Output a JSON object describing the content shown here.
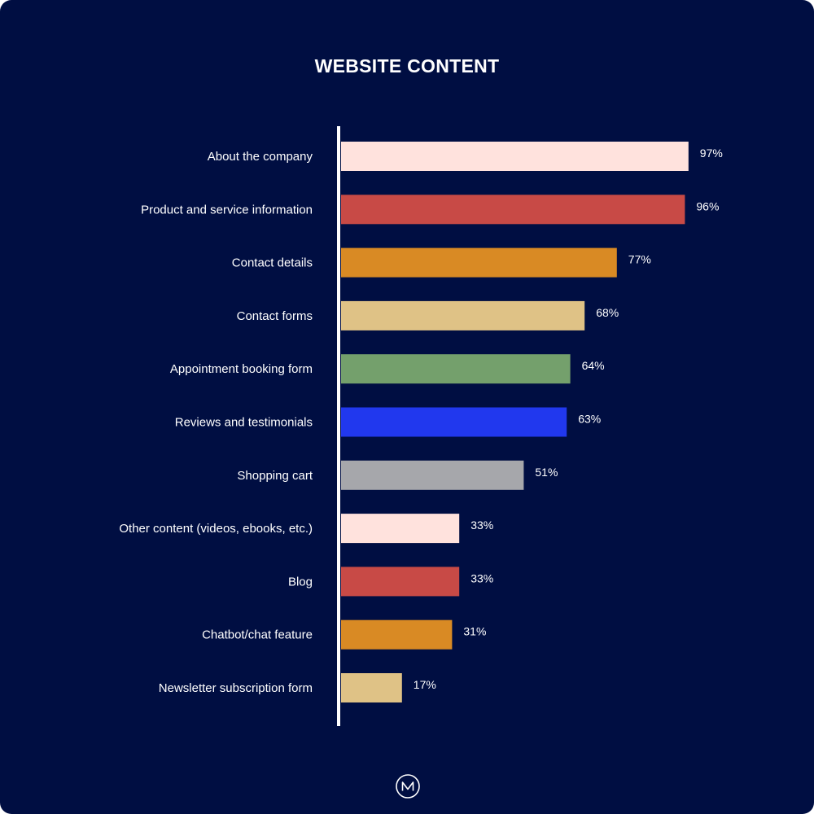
{
  "chart_data": {
    "type": "bar",
    "orientation": "horizontal",
    "title": "WEBSITE CONTENT",
    "xlabel": "",
    "ylabel": "",
    "xlim": [
      0,
      100
    ],
    "grid": false,
    "legend": "none",
    "categories": [
      "About the company",
      "Product and service information",
      "Contact details",
      "Contact forms",
      "Appointment booking form",
      "Reviews and testimonials",
      "Shopping cart",
      "Other content (videos, ebooks, etc.)",
      "Blog",
      "Chatbot/chat feature",
      "Newsletter subscription form"
    ],
    "values": [
      97,
      96,
      77,
      68,
      64,
      63,
      51,
      33,
      33,
      31,
      17
    ],
    "value_labels": [
      "97%",
      "96%",
      "77%",
      "68%",
      "64%",
      "63%",
      "51%",
      "33%",
      "33%",
      "31%",
      "17%"
    ],
    "colors": [
      "#ffe2dd",
      "#c84a46",
      "#d98a24",
      "#dfc286",
      "#74a06c",
      "#2138ee",
      "#a6a7ab",
      "#ffe2dd",
      "#c84a46",
      "#d98a24",
      "#dfc286"
    ]
  },
  "theme": {
    "background": "#000e42",
    "text": "#ffffff",
    "axis": "#ffffff"
  },
  "logo": {
    "icon": "nm-monogram-icon"
  }
}
